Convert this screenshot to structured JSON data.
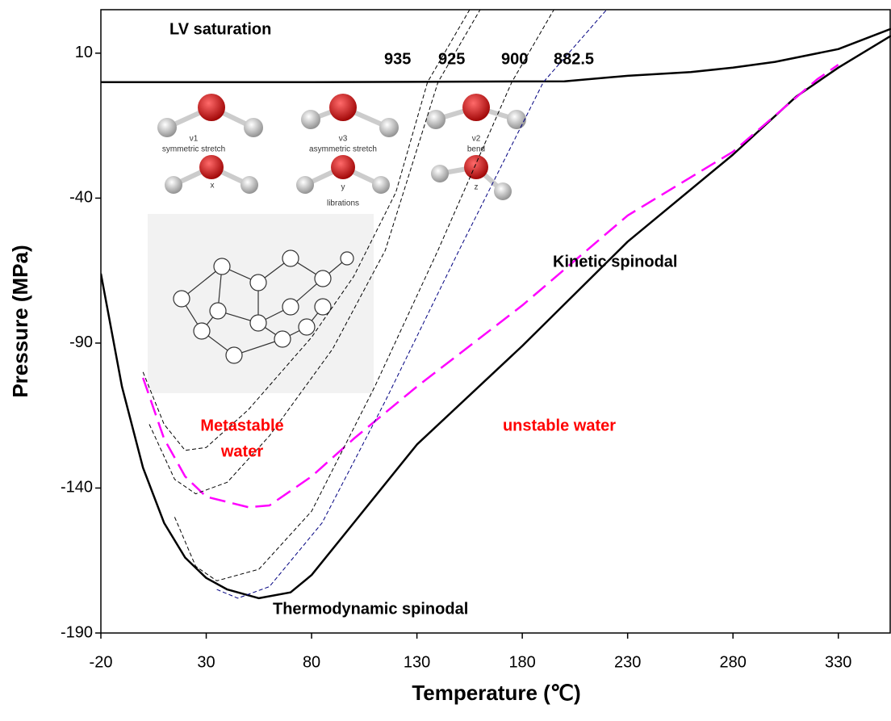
{
  "chart_data": {
    "type": "line",
    "x_label": "Temperature (℃)",
    "y_label": "Pressure (MPa)",
    "xlim": [
      -20,
      355
    ],
    "ylim": [
      -190,
      25
    ],
    "xticks": [
      -20,
      30,
      80,
      130,
      180,
      230,
      280,
      330
    ],
    "yticks": [
      10,
      -40,
      -90,
      -140,
      -190
    ],
    "series": [
      {
        "name": "LV saturation",
        "color": "#000000",
        "style": "solid",
        "x": [
          -20,
          80,
          200,
          230,
          260,
          280,
          300,
          330,
          355
        ],
        "values": [
          0,
          0,
          0.3,
          2.2,
          3.5,
          5,
          7,
          11.4,
          18.4
        ]
      },
      {
        "name": "Thermodynamic spinodal",
        "color": "#000000",
        "style": "solid",
        "x": [
          -20,
          -10,
          0,
          10,
          20,
          30,
          40,
          55,
          70,
          80,
          100,
          130,
          180,
          230,
          280,
          310,
          330,
          355
        ],
        "values": [
          -66,
          -105,
          -133,
          -152,
          -164,
          -171,
          -175,
          -178,
          -176,
          -170,
          -152,
          -125,
          -91,
          -55,
          -25,
          -5,
          5,
          16
        ]
      },
      {
        "name": "Kinetic spinodal",
        "color": "#ff00ff",
        "style": "long-dash",
        "x": [
          0,
          10,
          20,
          30,
          50,
          60,
          80,
          100,
          130,
          180,
          230,
          280,
          320,
          330
        ],
        "values": [
          -102,
          -123,
          -136,
          -143,
          -146.6,
          -146,
          -136,
          -123,
          -105,
          -77,
          -46,
          -24,
          1,
          6
        ]
      },
      {
        "name": "935",
        "color": "#000000",
        "style": "dashed",
        "x": [
          0,
          10,
          20,
          30,
          50,
          80,
          100,
          120,
          135,
          155
        ],
        "values": [
          -100,
          -118,
          -127,
          -126,
          -113,
          -88,
          -67,
          -38,
          0,
          25
        ]
      },
      {
        "name": "925",
        "color": "#000000",
        "style": "dashed",
        "x": [
          3,
          15,
          25,
          40,
          60,
          90,
          115,
          140,
          160
        ],
        "values": [
          -118,
          -137,
          -142,
          -138,
          -122,
          -92,
          -58,
          0,
          25
        ]
      },
      {
        "name": "900",
        "color": "#000000",
        "style": "dashed",
        "x": [
          15,
          25,
          35,
          55,
          80,
          110,
          140,
          175,
          195
        ],
        "values": [
          -150,
          -167,
          -172,
          -168,
          -148,
          -105,
          -58,
          0,
          25
        ]
      },
      {
        "name": "882.5",
        "color": "#000080",
        "style": "dashed",
        "x": [
          35,
          45,
          60,
          85,
          115,
          150,
          190,
          220
        ],
        "values": [
          -175,
          -178,
          -174,
          -152,
          -110,
          -58,
          0,
          25
        ]
      }
    ],
    "annotations": [
      "Metastable",
      "water",
      "unstable water"
    ]
  },
  "inset_labels": [
    "ν1",
    "symmetric stretch",
    "ν3",
    "asymmetric stretch",
    "ν2",
    "bend",
    "x",
    "y",
    "librations",
    "z"
  ]
}
